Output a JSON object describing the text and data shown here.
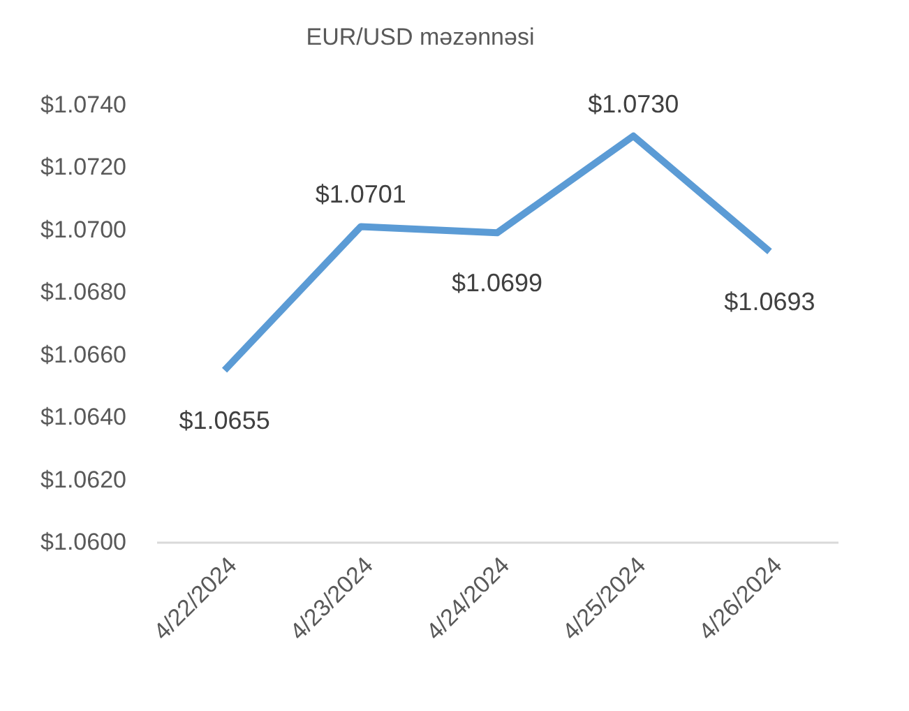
{
  "chart_data": {
    "type": "line",
    "title": "EUR/USD məzənnəsi",
    "categories": [
      "4/22/2024",
      "4/23/2024",
      "4/24/2024",
      "4/25/2024",
      "4/26/2024"
    ],
    "series": [
      {
        "color": "#5b9bd5",
        "values": [
          1.0655,
          1.0701,
          1.0699,
          1.073,
          1.0693
        ],
        "value_labels": [
          "$1.0655",
          "$1.0701",
          "$1.0699",
          "$1.0730",
          "$1.0693"
        ]
      }
    ],
    "ylim": [
      1.06,
      1.074
    ],
    "yticks": [
      {
        "value": 1.06,
        "label": "$1.0600"
      },
      {
        "value": 1.062,
        "label": "$1.0620"
      },
      {
        "value": 1.064,
        "label": "$1.0640"
      },
      {
        "value": 1.066,
        "label": "$1.0660"
      },
      {
        "value": 1.068,
        "label": "$1.0680"
      },
      {
        "value": 1.07,
        "label": "$1.0700"
      },
      {
        "value": 1.072,
        "label": "$1.0720"
      },
      {
        "value": 1.074,
        "label": "$1.0740"
      }
    ],
    "grid": false,
    "marker": "none",
    "line_style": "solid"
  }
}
